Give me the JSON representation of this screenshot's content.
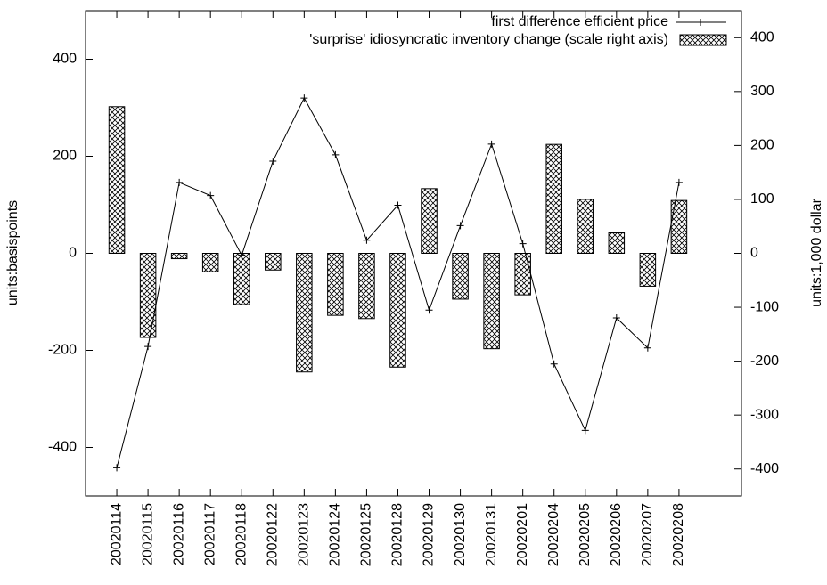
{
  "chart_data": {
    "type": "combo",
    "categories": [
      "20020114",
      "20020115",
      "20020116",
      "20020117",
      "20020118",
      "20020122",
      "20020123",
      "20020124",
      "20020125",
      "20020128",
      "20020129",
      "20020130",
      "20020131",
      "20020201",
      "20020204",
      "20020205",
      "20020206",
      "20020207",
      "20020208"
    ],
    "series": [
      {
        "name": "first difference efficient price",
        "type": "line",
        "color": "#000000",
        "values": [
          -442,
          -192,
          146,
          119,
          -4,
          190,
          320,
          203,
          27,
          99,
          -117,
          57,
          225,
          20,
          -228,
          -365,
          -133,
          -195,
          146
        ]
      },
      {
        "name": "'surprise' idiosyncratic inventory change (scale right axis)",
        "type": "bar",
        "color": "#000000",
        "axis": "y2",
        "values": [
          272,
          -156,
          -10,
          -34,
          -95,
          -31,
          -220,
          -115,
          -121,
          -211,
          120,
          -85,
          -177,
          -77,
          202,
          100,
          38,
          -61,
          98
        ]
      }
    ],
    "ylabel": "units:basispoints",
    "y2label": "units:1,000 dollar",
    "ylim": [
      -500,
      500
    ],
    "yticks": [
      -400,
      -200,
      0,
      200,
      400
    ],
    "y2lim": [
      -450,
      450
    ],
    "y2ticks": [
      -400,
      -300,
      -200,
      -100,
      0,
      100,
      200,
      300,
      400
    ],
    "legend": "top-right"
  }
}
